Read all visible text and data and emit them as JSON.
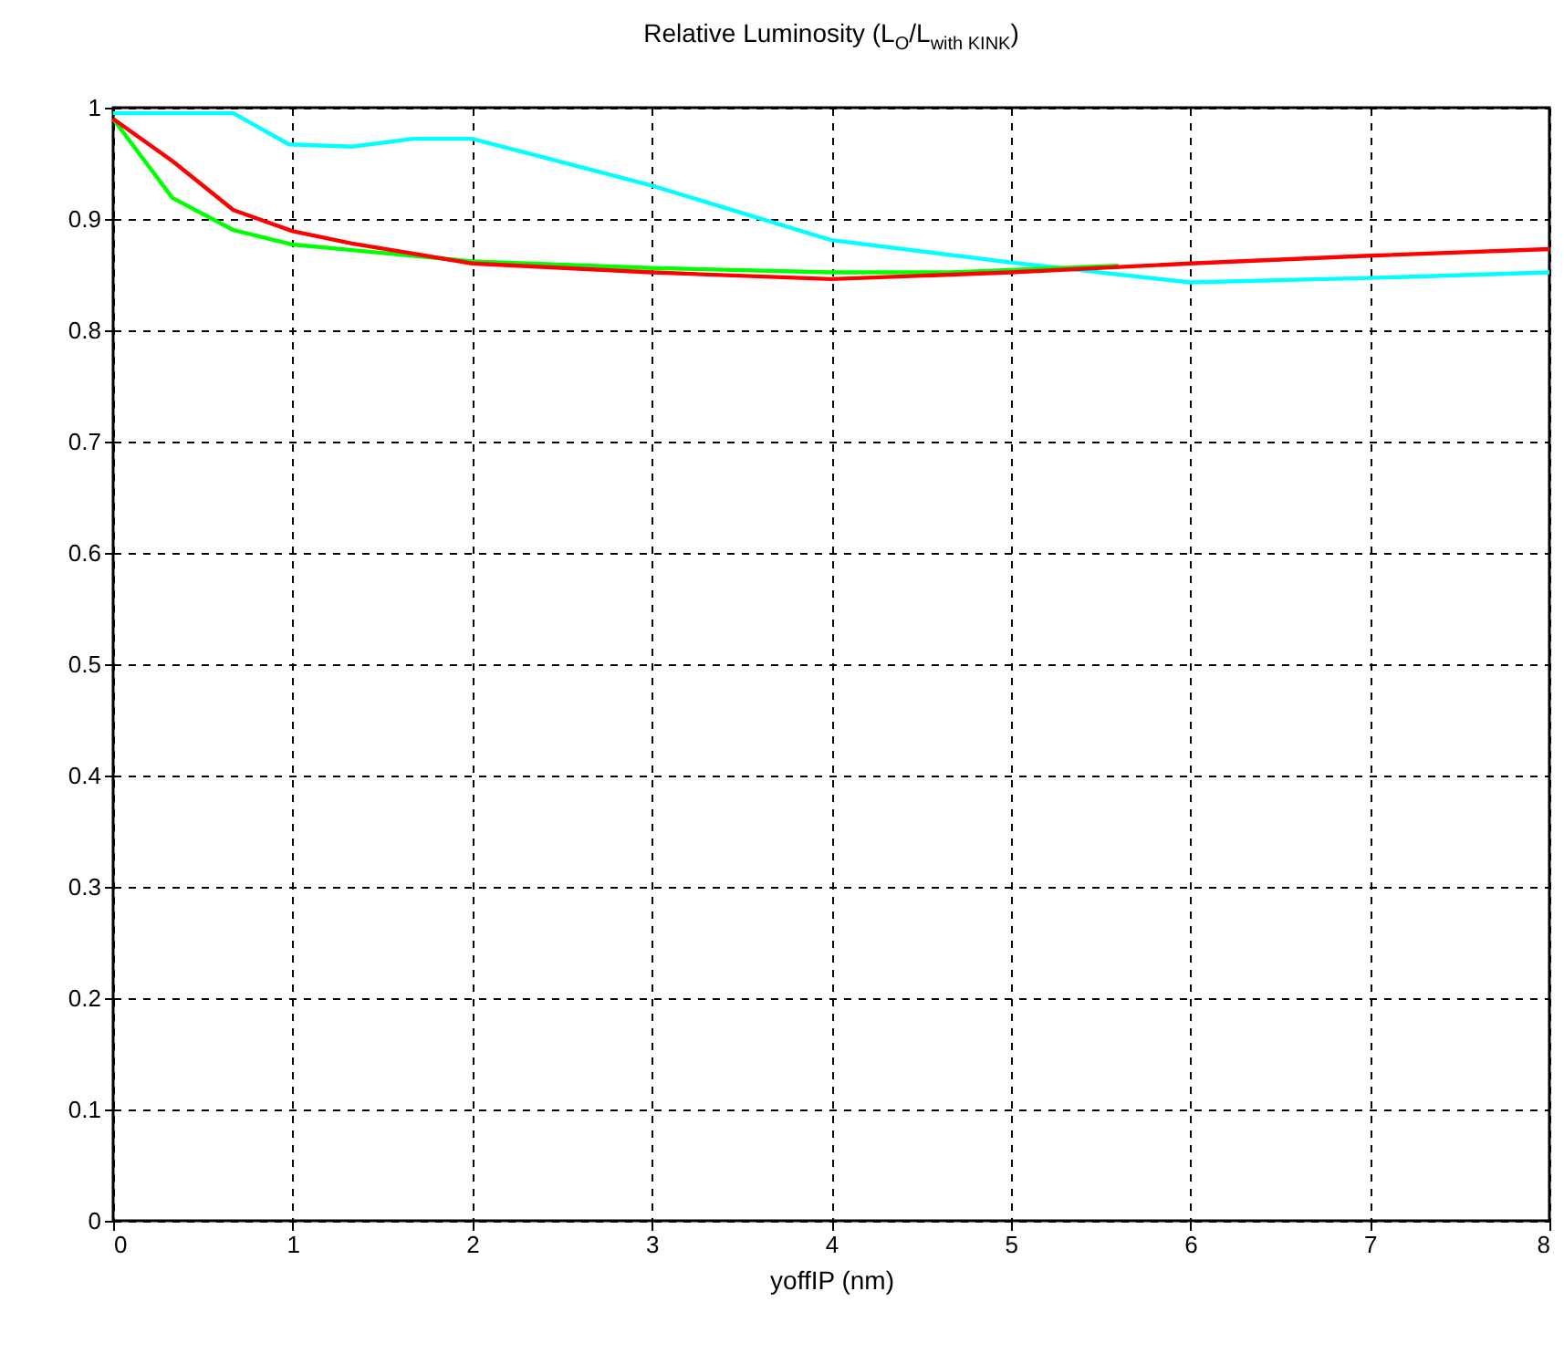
{
  "chart_data": {
    "type": "line",
    "title": "Relative Luminosity (L$_{O}$/L$_{with KINK}$)",
    "xlabel": "yoffIP (nm)",
    "xlim": [
      0,
      8
    ],
    "xticks": [
      0,
      1,
      2,
      3,
      4,
      5,
      6,
      7,
      8
    ],
    "ylim": [
      0,
      1
    ],
    "yticks": [
      0,
      0.1,
      0.2,
      0.3,
      0.4,
      0.5,
      0.6,
      0.7,
      0.8,
      0.9,
      1
    ],
    "grid": true,
    "marker": "none",
    "line_style": "solid",
    "series": [
      {
        "color": "#00ffff",
        "x": [
          0,
          0.67,
          0.98,
          1.33,
          1.67,
          2,
          3,
          4,
          5,
          5.33,
          6,
          7,
          8
        ],
        "values": [
          0.995,
          0.995,
          0.967,
          0.965,
          0.972,
          0.972,
          0.93,
          0.881,
          0.861,
          0.855,
          0.843,
          0.847,
          0.852
        ]
      },
      {
        "color": "#00ff00",
        "x": [
          0,
          0.33,
          0.67,
          1,
          1.33,
          2,
          3,
          4,
          4.67,
          5.6
        ],
        "values": [
          0.99,
          0.919,
          0.89,
          0.877,
          0.872,
          0.862,
          0.856,
          0.852,
          0.852,
          0.858
        ]
      },
      {
        "color": "#ff0000",
        "x": [
          0,
          0.33,
          0.67,
          1,
          1.33,
          2,
          3,
          4,
          5,
          6,
          7,
          8
        ],
        "values": [
          0.99,
          0.952,
          0.908,
          0.889,
          0.878,
          0.86,
          0.852,
          0.846,
          0.852,
          0.86,
          0.867,
          0.873
        ]
      }
    ]
  }
}
